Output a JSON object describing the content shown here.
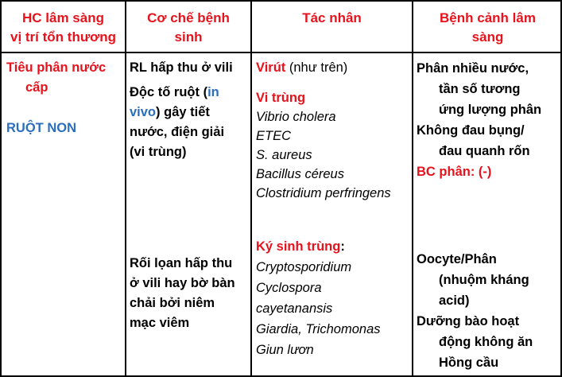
{
  "headers": {
    "col1": [
      "HC lâm sàng",
      "vị trí tổn thương"
    ],
    "col2": [
      "Cơ chế bệnh",
      "sinh"
    ],
    "col3": "Tác nhân",
    "col4": [
      "Bệnh cảnh lâm",
      "sàng"
    ]
  },
  "col1": {
    "syndrome": [
      "Tiêu phân nước",
      "cấp"
    ],
    "location": "RUỘT NON"
  },
  "col2": {
    "mech1": "RL hấp thu ở vili",
    "mech2_a": "Độc tố ruột (",
    "mech2_b": "in",
    "mech2_c": "vivo",
    "mech2_d": ") gây tiết",
    "mech2_e": "nước, điện giải",
    "mech2_f": "(vi trùng)",
    "mech3": [
      "Rối lọan hấp thu",
      "ở vili hay bờ bàn",
      "chải bởi niêm",
      "mạc viêm"
    ]
  },
  "col3": {
    "virus_label": "Virút",
    "virus_note": " (như trên)",
    "bacteria_label": "Vi trùng",
    "bacteria": [
      "Vibrio cholera",
      "ETEC",
      "S. aureus",
      "Bacillus céreus",
      "Clostridium perfringens"
    ],
    "parasite_label": "Ký sinh trùng",
    "parasite_colon": ":",
    "parasites": [
      "Cryptosporidium",
      "Cyclospora",
      "cayetanansis",
      "Giardia, Trichomonas",
      "Giun lươn"
    ]
  },
  "col4": {
    "clinical1": [
      "Phân nhiều nước,",
      "tần số tương",
      "ứng lượng phân"
    ],
    "clinical2": [
      "Không đau bụng/",
      "đau quanh rốn"
    ],
    "bc": "BC phân: (-)",
    "clinical3": [
      "Oocyte/Phân",
      "(nhuộm kháng",
      "acid)"
    ],
    "clinical4": [
      "Dưỡng bào hoạt",
      "động không ăn",
      "Hồng cầu"
    ]
  },
  "colors": {
    "header": "#e8121c",
    "blue": "#2a6ebd"
  }
}
